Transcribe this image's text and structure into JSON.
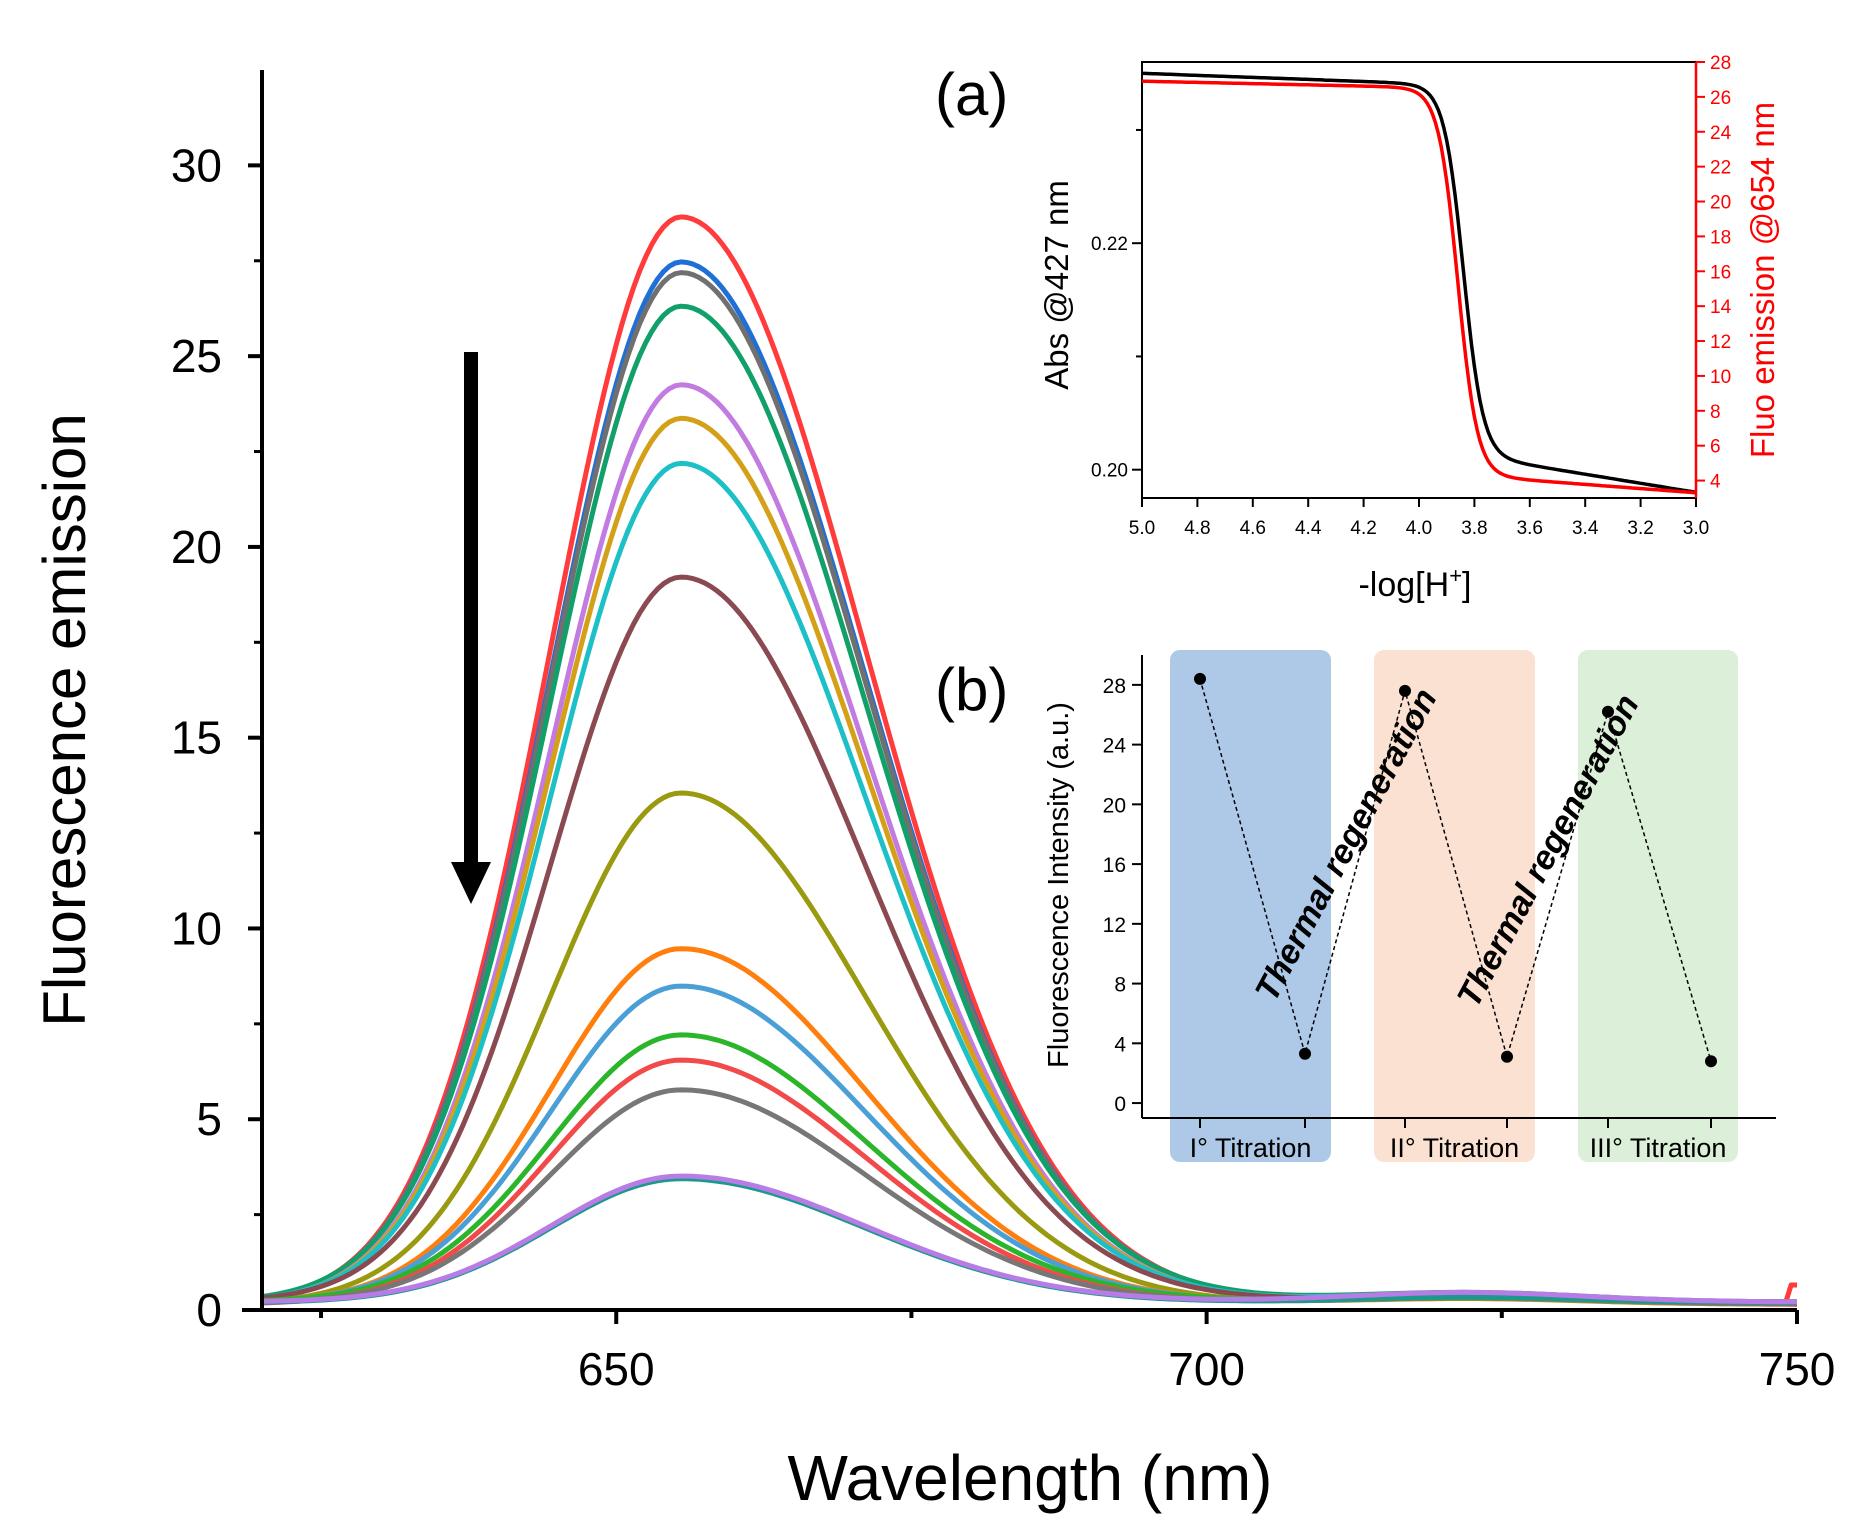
{
  "chart_data": [
    {
      "id": "main",
      "type": "line",
      "xlabel": "Wavelength (nm)",
      "ylabel": "Fluorescence emission",
      "xlim": [
        620,
        750
      ],
      "ylim": [
        0,
        32.5
      ],
      "xticks": [
        650,
        700,
        750
      ],
      "yticks": [
        0,
        5,
        10,
        15,
        20,
        25,
        30
      ],
      "peak_nm": 655.5,
      "arrow": "down",
      "series": [
        {
          "name": "s1",
          "color": "#ff3b3b",
          "peak": 28.5
        },
        {
          "name": "s2",
          "color": "#1f6fd6",
          "peak": 27.3
        },
        {
          "name": "s3",
          "color": "#707070",
          "peak": 27.0
        },
        {
          "name": "s4",
          "color": "#12a06a",
          "peak": 26.1
        },
        {
          "name": "s5",
          "color": "#c27be0",
          "peak": 24.1
        },
        {
          "name": "s6",
          "color": "#d4a017",
          "peak": 23.2
        },
        {
          "name": "s7",
          "color": "#1ec0c8",
          "peak": 22.0
        },
        {
          "name": "s8",
          "color": "#8b4a52",
          "peak": 19.0
        },
        {
          "name": "s9",
          "color": "#9a9a10",
          "peak": 13.4
        },
        {
          "name": "s10",
          "color": "#ff7f0e",
          "peak": 9.3
        },
        {
          "name": "s11",
          "color": "#4a9fd6",
          "peak": 8.3
        },
        {
          "name": "s12",
          "color": "#2ab52a",
          "peak": 7.0
        },
        {
          "name": "s13",
          "color": "#f24a4a",
          "peak": 6.4
        },
        {
          "name": "s14",
          "color": "#777777",
          "peak": 5.6
        },
        {
          "name": "s15",
          "color": "#1a9a8a",
          "peak": 3.25
        },
        {
          "name": "s16",
          "color": "#b77ce6",
          "peak": 3.3
        }
      ]
    },
    {
      "id": "inset_a",
      "panel_label": "(a)",
      "type": "line",
      "xlabel": "-log[H",
      "xlabel_sup": "+",
      "xlabel_end": "]",
      "ylabel_left": "Abs @427 nm",
      "ylabel_right": "Fluo emission @654 nm",
      "x_range": [
        5.0,
        3.0
      ],
      "x_ticks": [
        "5.0",
        "4.8",
        "4.6",
        "4.4",
        "4.2",
        "4.0",
        "3.8",
        "3.6",
        "3.4",
        "3.2",
        "3.0"
      ],
      "y_left_ticks": [
        "0.20",
        "0.22"
      ],
      "y_left_range": [
        0.1975,
        0.236
      ],
      "y_right_range": [
        3,
        28
      ],
      "y_right_ticks": [
        "4",
        "6",
        "8",
        "10",
        "12",
        "14",
        "16",
        "18",
        "20",
        "22",
        "24",
        "26",
        "28"
      ],
      "series": [
        {
          "name": "Abs @427 nm",
          "color": "#000000",
          "top": 0.235,
          "bottom": 0.198,
          "midpoint": 3.84
        },
        {
          "name": "Fluo emission @654 nm",
          "color": "#ff0000",
          "top": 26.9,
          "bottom": 3.3,
          "midpoint": 3.86
        }
      ]
    },
    {
      "id": "inset_b",
      "panel_label": "(b)",
      "type": "scatter",
      "ylabel": "Fluorescence Intensity (a.u.)",
      "y_range": [
        -1,
        30
      ],
      "y_ticks": [
        "0",
        "4",
        "8",
        "12",
        "16",
        "20",
        "24",
        "28"
      ],
      "points": [
        28.4,
        3.3,
        27.6,
        3.1,
        26.2,
        2.8
      ],
      "groups": [
        {
          "label": "I° Titration",
          "color": "#aec8e8"
        },
        {
          "label": "II° Titration",
          "color": "#fbe1d2"
        },
        {
          "label": "III° Titration",
          "color": "#dcefd8"
        }
      ],
      "annotations": [
        "Thermal regeneration",
        "Thermal regeneration"
      ]
    }
  ]
}
